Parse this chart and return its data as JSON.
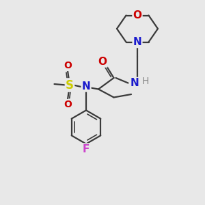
{
  "background_color": "#e8e8e8",
  "figsize": [
    3.0,
    3.0
  ],
  "dpi": 100,
  "bond_color": "#3a3a3a",
  "bond_lw": 1.6,
  "atom_bg": "#e8e8e8",
  "colors": {
    "O": "#cc0000",
    "N": "#1a1acc",
    "S": "#cccc00",
    "F": "#cc44cc",
    "H": "#888888",
    "C": "#3a3a3a"
  }
}
